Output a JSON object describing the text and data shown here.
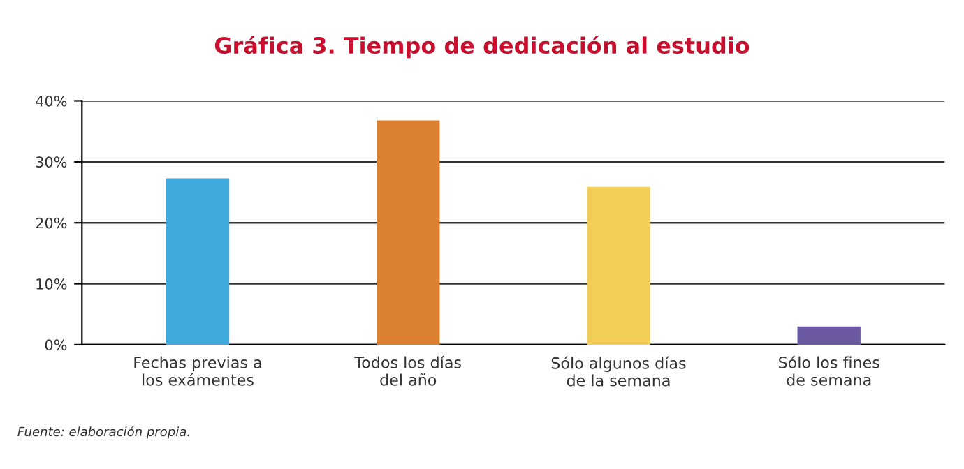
{
  "chart_data": {
    "type": "bar",
    "title": "Gráfica 3. Tiempo de dedicación al estudio",
    "categories": [
      "Fechas previas a\nlos exámentes",
      "Todos los días\ndel año",
      "Sólo algunos días\nde la semana",
      "Sólo los fines\nde semana"
    ],
    "values": [
      27.3,
      36.8,
      25.9,
      3.0
    ],
    "colors": [
      "#3fa9db",
      "#db8030",
      "#f2cd58",
      "#6a58a0"
    ],
    "ylim": [
      0,
      40
    ],
    "yticks": [
      {
        "value": 0,
        "label": "0%"
      },
      {
        "value": 10,
        "label": "10%"
      },
      {
        "value": 20,
        "label": "20%"
      },
      {
        "value": 30,
        "label": "30%"
      },
      {
        "value": 40,
        "label": "40%"
      }
    ],
    "grid": "y",
    "annotations": [
      "Fuente: elaboración propia."
    ]
  }
}
